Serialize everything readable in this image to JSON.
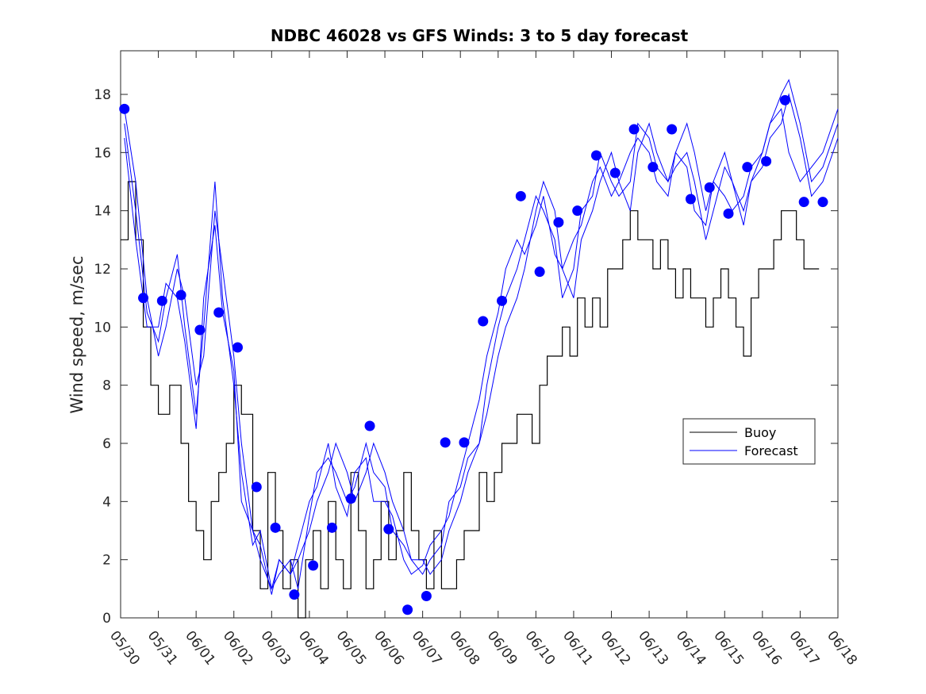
{
  "chart_data": {
    "type": "line",
    "title": "NDBC 46028 vs GFS Winds: 3 to 5 day forecast",
    "xlabel": "",
    "ylabel": "Wind speed, m/sec",
    "x_tick_labels": [
      "05/30",
      "05/31",
      "06/01",
      "06/02",
      "06/03",
      "06/04",
      "06/05",
      "06/06",
      "06/07",
      "06/08",
      "06/09",
      "06/10",
      "06/11",
      "06/12",
      "06/13",
      "06/14",
      "06/15",
      "06/16",
      "06/17",
      "06/18"
    ],
    "y_ticks": [
      0,
      2,
      4,
      6,
      8,
      10,
      12,
      14,
      16,
      18
    ],
    "xlim": [
      0,
      19
    ],
    "ylim": [
      0,
      19.5
    ],
    "grid": false,
    "legend": {
      "position": "right",
      "entries": [
        "Buoy",
        "Forecast"
      ]
    },
    "colors": {
      "buoy": "#000000",
      "forecast": "#0000ff"
    },
    "buoy_series": {
      "name": "Buoy",
      "x": [
        0,
        0.2,
        0.4,
        0.6,
        0.8,
        1.0,
        1.3,
        1.6,
        1.8,
        2.0,
        2.2,
        2.4,
        2.6,
        2.8,
        3.0,
        3.2,
        3.5,
        3.7,
        3.9,
        4.1,
        4.3,
        4.5,
        4.7,
        4.9,
        5.1,
        5.3,
        5.5,
        5.7,
        5.9,
        6.1,
        6.3,
        6.5,
        6.7,
        6.9,
        7.1,
        7.3,
        7.5,
        7.7,
        7.9,
        8.1,
        8.3,
        8.5,
        8.7,
        8.9,
        9.1,
        9.3,
        9.5,
        9.7,
        9.9,
        10.1,
        10.3,
        10.5,
        10.7,
        10.9,
        11.1,
        11.3,
        11.5,
        11.7,
        11.9,
        12.1,
        12.3,
        12.5,
        12.7,
        12.9,
        13.1,
        13.3,
        13.5,
        13.7,
        13.9,
        14.1,
        14.3,
        14.5,
        14.7,
        14.9,
        15.1,
        15.3,
        15.5,
        15.7,
        15.9,
        16.1,
        16.3,
        16.5,
        16.7,
        16.9,
        17.1,
        17.3,
        17.5,
        17.7,
        17.9,
        18.1,
        18.3
      ],
      "values": [
        13,
        15,
        13,
        10,
        8,
        7,
        8,
        6,
        4,
        3,
        2,
        4,
        5,
        6,
        8,
        7,
        3,
        1,
        5,
        3,
        1,
        2,
        0,
        2,
        3,
        1,
        4,
        2,
        1,
        5,
        3,
        1,
        2,
        4,
        2,
        3,
        5,
        3,
        2,
        1,
        3,
        1,
        1,
        2,
        3,
        3,
        5,
        4,
        5,
        6,
        6,
        7,
        7,
        6,
        8,
        9,
        9,
        10,
        9,
        11,
        10,
        11,
        10,
        12,
        12,
        13,
        14,
        13,
        13,
        12,
        13,
        12,
        11,
        12,
        11,
        11,
        10,
        11,
        12,
        11,
        10,
        9,
        11,
        12,
        12,
        13,
        14,
        14,
        13,
        12,
        12
      ]
    },
    "forecast_series": [
      {
        "x": [
          0.1,
          0.4,
          0.7,
          1.0,
          1.2,
          1.5,
          1.7,
          2.0,
          2.2,
          2.5,
          2.7,
          3.0,
          3.2,
          3.5,
          3.7,
          4.0,
          4.2,
          4.5,
          4.7,
          5.0,
          5.2,
          5.5,
          5.7,
          6.0,
          6.2,
          6.5,
          6.7,
          7.0,
          7.2,
          7.5,
          7.7,
          8.0,
          8.2,
          8.5,
          8.7,
          9.0,
          9.2,
          9.5,
          9.7,
          10.0,
          10.2,
          10.5,
          10.7,
          11.0,
          11.2,
          11.5,
          11.7,
          12.0,
          12.2,
          12.5,
          12.7,
          13.0,
          13.2,
          13.5,
          13.7,
          14.0,
          14.2,
          14.5,
          14.7,
          15.0,
          15.2,
          15.5,
          15.7,
          16.0,
          16.2,
          16.5,
          16.7,
          17.0,
          17.2,
          17.5,
          17.7,
          18.0,
          18.3,
          18.6,
          19.0
        ],
        "values": [
          17.5,
          15,
          11,
          9,
          10,
          12,
          11,
          8,
          9,
          14,
          12,
          9,
          6,
          3,
          2,
          1,
          2,
          1.5,
          2,
          3,
          4,
          5,
          6,
          5,
          4,
          5,
          6,
          5,
          4,
          3,
          2,
          2,
          1.5,
          2,
          3,
          4,
          5,
          6,
          7,
          9,
          10,
          11,
          12,
          14,
          15,
          14,
          12,
          11,
          13,
          14,
          15,
          16,
          15,
          14,
          16,
          17,
          16,
          15,
          16,
          17,
          16,
          14,
          15,
          16,
          15,
          14,
          15,
          16,
          17,
          18,
          18.5,
          17,
          15,
          15.5,
          17
        ]
      },
      {
        "x": [
          0.1,
          0.4,
          0.7,
          1.0,
          1.2,
          1.5,
          1.7,
          2.0,
          2.2,
          2.5,
          2.7,
          3.0,
          3.2,
          3.5,
          3.7,
          4.0,
          4.2,
          4.5,
          4.7,
          5.0,
          5.2,
          5.5,
          5.7,
          6.0,
          6.2,
          6.5,
          6.7,
          7.0,
          7.2,
          7.5,
          7.7,
          8.0,
          8.2,
          8.5,
          8.7,
          9.0,
          9.2,
          9.5,
          9.7,
          10.0,
          10.2,
          10.5,
          10.7,
          11.0,
          11.2,
          11.5,
          11.7,
          12.0,
          12.2,
          12.5,
          12.7,
          13.0,
          13.2,
          13.5,
          13.7,
          14.0,
          14.2,
          14.5,
          14.7,
          15.0,
          15.2,
          15.5,
          15.7,
          16.0,
          16.2,
          16.5,
          16.7,
          17.0,
          17.2,
          17.5,
          17.7,
          18.0,
          18.3,
          18.6,
          19.0
        ],
        "values": [
          17,
          14,
          10.5,
          9.5,
          11,
          12.5,
          10,
          7,
          10,
          15,
          11,
          8,
          5,
          2.5,
          3,
          1,
          1.5,
          2,
          1,
          3.5,
          5,
          5.5,
          5,
          4,
          4.5,
          6,
          5,
          4.5,
          3,
          2.5,
          2,
          1.5,
          2,
          2.5,
          4,
          4.5,
          5.5,
          6,
          8,
          10,
          11,
          12,
          13,
          14.5,
          14,
          13,
          11,
          12,
          14,
          14.5,
          16,
          15,
          14.5,
          15,
          17,
          16.5,
          15.5,
          15,
          15.5,
          16,
          15,
          13,
          14,
          15.5,
          15,
          13.5,
          15,
          15.5,
          16.5,
          17,
          18,
          16.5,
          14.5,
          15,
          16.5
        ]
      },
      {
        "x": [
          0.1,
          0.4,
          0.7,
          1.0,
          1.2,
          1.5,
          1.7,
          2.0,
          2.2,
          2.5,
          2.7,
          3.0,
          3.2,
          3.5,
          3.7,
          4.0,
          4.2,
          4.5,
          4.7,
          5.0,
          5.2,
          5.5,
          5.7,
          6.0,
          6.2,
          6.5,
          6.7,
          7.0,
          7.2,
          7.5,
          7.7,
          8.0,
          8.2,
          8.5,
          8.7,
          9.0,
          9.2,
          9.5,
          9.7,
          10.0,
          10.2,
          10.5,
          10.7,
          11.0,
          11.2,
          11.5,
          11.7,
          12.0,
          12.2,
          12.5,
          12.7,
          13.0,
          13.2,
          13.5,
          13.7,
          14.0,
          14.2,
          14.5,
          14.7,
          15.0,
          15.2,
          15.5,
          15.7,
          16.0,
          16.2,
          16.5,
          16.7,
          17.0,
          17.2,
          17.5,
          17.7,
          18.0,
          18.3,
          18.6,
          19.0
        ],
        "values": [
          16.5,
          13,
          10,
          10,
          11.5,
          11,
          9.5,
          6.5,
          11,
          13.5,
          10.5,
          8.5,
          4,
          3,
          2.5,
          0.8,
          2,
          1.5,
          2.5,
          4,
          4.5,
          6,
          4.5,
          3.5,
          5,
          5.5,
          4,
          4,
          3.5,
          2,
          1.5,
          1.8,
          2.5,
          3,
          3.5,
          5,
          6,
          7.5,
          9,
          10.5,
          12,
          13,
          12.5,
          13.5,
          14.5,
          12.5,
          12,
          13,
          13.5,
          15,
          15.5,
          14.5,
          15,
          16,
          16.5,
          16,
          15,
          14.5,
          16,
          15.5,
          14,
          13.5,
          15,
          14.5,
          14,
          14.5,
          15.5,
          16,
          17,
          17.5,
          16,
          15,
          15.5,
          16,
          17.5
        ]
      }
    ],
    "forecast_markers": {
      "x": [
        0.1,
        0.6,
        1.1,
        1.6,
        2.1,
        2.6,
        3.1,
        3.6,
        4.1,
        4.6,
        5.1,
        5.6,
        6.1,
        6.6,
        7.1,
        7.6,
        8.1,
        8.6,
        9.1,
        9.6,
        10.1,
        10.6,
        11.1,
        11.6,
        12.1,
        12.6,
        13.1,
        13.6,
        14.1,
        14.6,
        15.1,
        15.6,
        16.1,
        16.6,
        17.1,
        17.6,
        18.1,
        18.6
      ],
      "values": [
        17.5,
        11,
        10.9,
        11.1,
        9.9,
        10.5,
        9.3,
        4.5,
        3.1,
        0.8,
        1.8,
        3.1,
        4.1,
        6.6,
        3.05,
        0.28,
        0.75,
        6.03,
        6.03,
        10.2,
        10.9,
        14.5,
        11.9,
        13.6,
        14.0,
        15.9,
        15.3,
        16.8,
        15.5,
        16.8,
        14.4,
        14.8,
        13.9,
        15.5,
        15.7,
        17.8,
        14.3,
        14.3
      ]
    }
  }
}
